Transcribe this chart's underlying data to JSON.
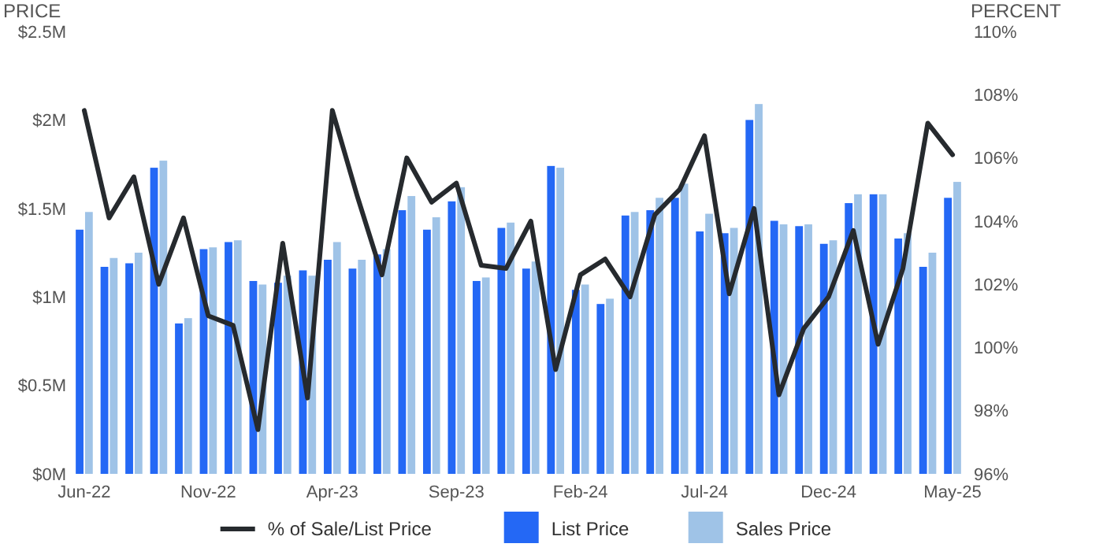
{
  "chart_data": {
    "type": "bar",
    "categories": [
      "Jun-22",
      null,
      null,
      null,
      null,
      "Nov-22",
      null,
      null,
      null,
      null,
      "Apr-23",
      null,
      null,
      null,
      null,
      "Sep-23",
      null,
      null,
      null,
      null,
      "Feb-24",
      null,
      null,
      null,
      null,
      "Jul-24",
      null,
      null,
      null,
      null,
      "Dec-24",
      null,
      null,
      null,
      null,
      "May-25"
    ],
    "ylabel": "PRICE",
    "y2label": "PERCENT",
    "series": [
      {
        "name": "% of Sale/List Price",
        "type": "line",
        "axis": "y2",
        "color": "#262a2e",
        "values": [
          107.5,
          104.1,
          105.4,
          102.0,
          104.1,
          101.0,
          100.7,
          97.4,
          103.3,
          98.4,
          107.5,
          104.8,
          102.3,
          106.0,
          104.6,
          105.2,
          102.6,
          102.5,
          104.0,
          99.3,
          102.3,
          102.8,
          101.6,
          104.2,
          105.0,
          106.7,
          101.7,
          104.4,
          98.5,
          100.6,
          101.6,
          103.7,
          100.1,
          102.5,
          107.1,
          106.1
        ]
      },
      {
        "name": "List Price",
        "color": "#2468f5",
        "values": [
          1.38,
          1.17,
          1.19,
          1.73,
          0.85,
          1.27,
          1.31,
          1.09,
          1.08,
          1.15,
          1.21,
          1.16,
          1.24,
          1.49,
          1.38,
          1.54,
          1.09,
          1.39,
          1.16,
          1.74,
          1.04,
          0.96,
          1.46,
          1.49,
          1.56,
          1.37,
          1.36,
          2.0,
          1.43,
          1.4,
          1.3,
          1.53,
          1.58,
          1.33,
          1.17,
          1.56
        ]
      },
      {
        "name": "Sales Price",
        "color": "#9fc3e7",
        "values": [
          1.48,
          1.22,
          1.25,
          1.77,
          0.88,
          1.28,
          1.32,
          1.07,
          1.12,
          1.12,
          1.31,
          1.21,
          1.27,
          1.57,
          1.45,
          1.62,
          1.11,
          1.42,
          1.2,
          1.73,
          1.07,
          0.99,
          1.48,
          1.56,
          1.64,
          1.47,
          1.39,
          2.09,
          1.41,
          1.41,
          1.32,
          1.58,
          1.58,
          1.36,
          1.25,
          1.65
        ]
      }
    ],
    "ylim": [
      0,
      2.5
    ],
    "yticks": [
      {
        "value": 0,
        "label": "$0M"
      },
      {
        "value": 0.5,
        "label": "$0.5M"
      },
      {
        "value": 1,
        "label": "$1M"
      },
      {
        "value": 1.5,
        "label": "$1.5M"
      },
      {
        "value": 2,
        "label": "$2M"
      },
      {
        "value": 2.5,
        "label": "$2.5M"
      }
    ],
    "y2lim": [
      96,
      110
    ],
    "y2ticks": [
      {
        "value": 96,
        "label": "96%"
      },
      {
        "value": 98,
        "label": "98%"
      },
      {
        "value": 100,
        "label": "100%"
      },
      {
        "value": 102,
        "label": "102%"
      },
      {
        "value": 104,
        "label": "104%"
      },
      {
        "value": 106,
        "label": "106%"
      },
      {
        "value": 108,
        "label": "108%"
      },
      {
        "value": 110,
        "label": "110%"
      }
    ],
    "grid": false,
    "legend": "bottom"
  }
}
